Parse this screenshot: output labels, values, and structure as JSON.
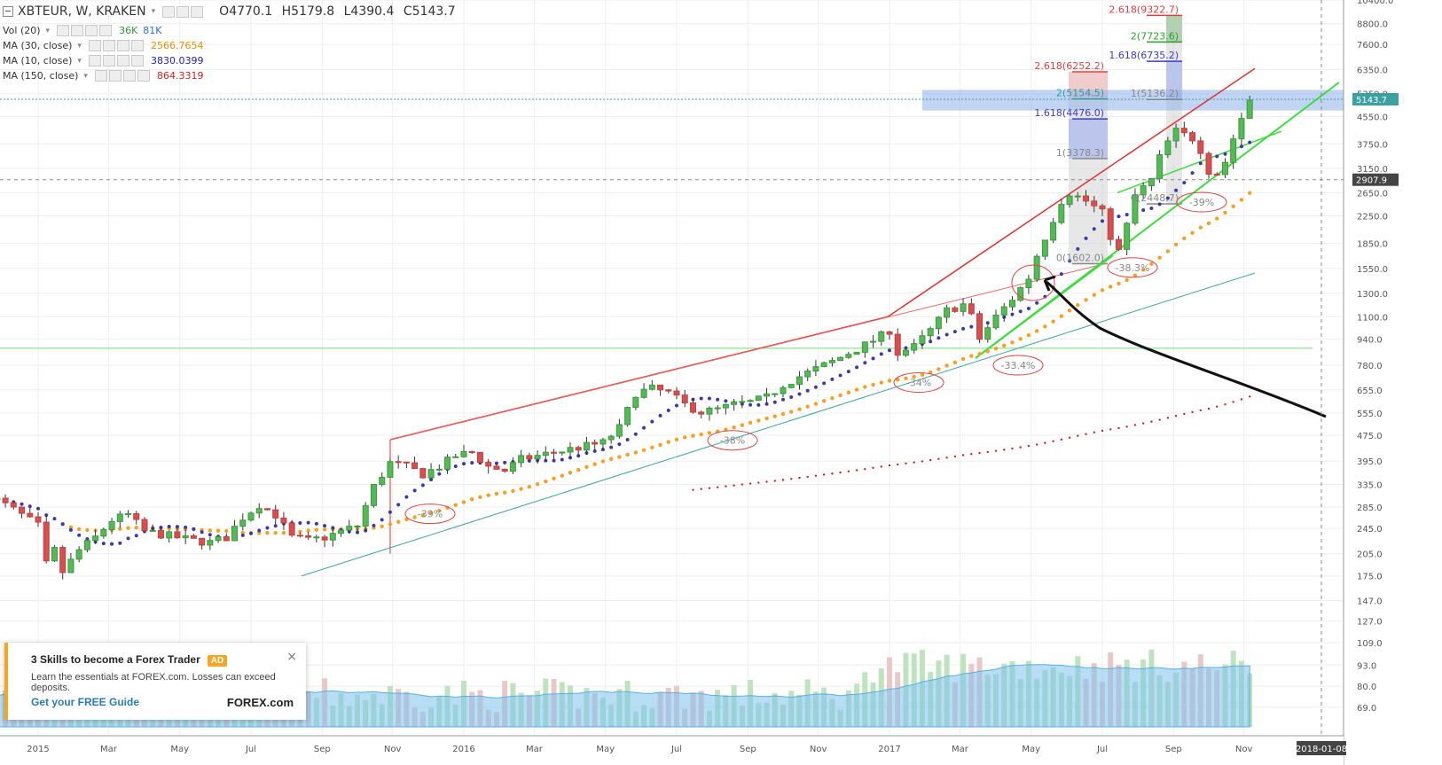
{
  "header": {
    "symbol": "XBTEUR, W, KRAKEN",
    "open": "O4770.1",
    "high": "H5179.8",
    "low": "L4390.4",
    "close": "C5143.7"
  },
  "indicators": [
    {
      "name": "Vol (20)",
      "values": [
        "36K",
        "81K"
      ],
      "colors": [
        "#2e9b2e",
        "#2a6ed8"
      ]
    },
    {
      "name": "MA (30, close)",
      "values": [
        "2566.7654"
      ],
      "colors": [
        "#f08c00"
      ]
    },
    {
      "name": "MA (10, close)",
      "values": [
        "3830.0399"
      ],
      "colors": [
        "#2222aa"
      ]
    },
    {
      "name": "MA (150, close)",
      "values": [
        "864.3319"
      ],
      "colors": [
        "#d42020"
      ]
    }
  ],
  "ad": {
    "title": "3 Skills to become a Forex Trader",
    "badge": "AD",
    "text": "Learn the essentials at FOREX.com. Losses can exceed deposits.",
    "link": "Get your FREE Guide",
    "logo": "FOREX.com",
    "close": "×"
  },
  "chart_data": {
    "type": "candlestick",
    "scale": "log",
    "ylim": [
      60,
      10400
    ],
    "grid": true,
    "price_ticks": [
      "10400.0",
      "8800.0",
      "7600.0",
      "6350.0",
      "5350.0",
      "4550.0",
      "3750.0",
      "3150.0",
      "2650.0",
      "2250.0",
      "1850.0",
      "1550.0",
      "1300.0",
      "1100.0",
      "940.0",
      "780.0",
      "655.0",
      "555.0",
      "475.0",
      "395.0",
      "335.0",
      "285.0",
      "245.0",
      "205.0",
      "175.0",
      "147.0",
      "127.0",
      "109.0",
      "93.0",
      "80.0",
      "69.0"
    ],
    "time_ticks": [
      "2015",
      "Mar",
      "May",
      "Jul",
      "Sep",
      "Nov",
      "2016",
      "Mar",
      "May",
      "Jul",
      "Sep",
      "Nov",
      "2017",
      "Mar",
      "May",
      "Jul",
      "Sep",
      "Nov"
    ],
    "current_price": "5143.7",
    "crosshair_price": "2907.9",
    "crosshair_date": "2018-01-08",
    "fib_levels": [
      {
        "label": "2.618(9322.7)",
        "value": 9322.7,
        "color": "#e04040"
      },
      {
        "label": "2(7723.6)",
        "value": 7723.6,
        "color": "#2e9b2e"
      },
      {
        "label": "1.618(6735.2)",
        "value": 6735.2,
        "color": "#3a3ad0"
      },
      {
        "label": "1(5136.2)",
        "value": 5136.2,
        "color": "#888888"
      },
      {
        "label": "2.618(6252.2)",
        "value": 6252.2,
        "color": "#e04040"
      },
      {
        "label": "2(5154.5)",
        "value": 5154.5,
        "color": "#2e9b9b"
      },
      {
        "label": "1.618(4476.0)",
        "value": 4476.0,
        "color": "#3a3ad0"
      },
      {
        "label": "1(3378.3)",
        "value": 3378.3,
        "color": "#888888"
      },
      {
        "label": "0(1602.0)",
        "value": 1602.0,
        "color": "#888888"
      },
      {
        "label": "0(2448.7)",
        "value": 2448.7,
        "color": "#888888"
      }
    ],
    "drawdowns": [
      "-39%",
      "-38%",
      "-34%",
      "-33.4%",
      "-38.3%",
      "-39%"
    ]
  }
}
